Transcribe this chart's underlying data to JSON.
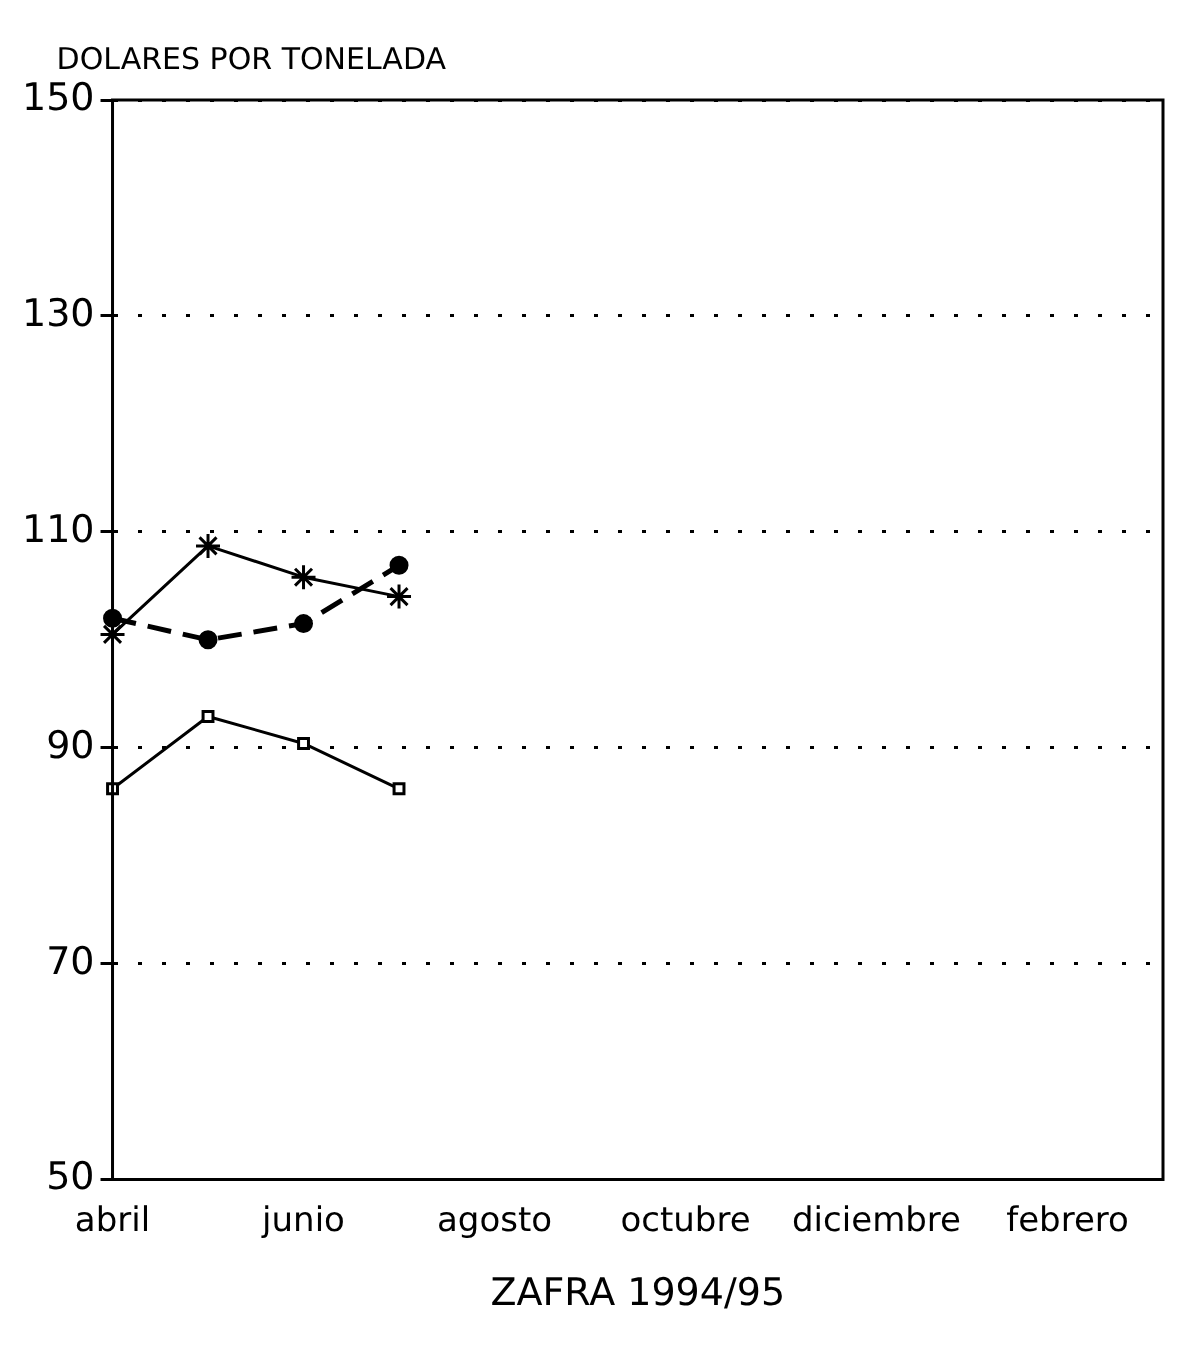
{
  "chart_data": {
    "type": "line",
    "ylabel": "DOLARES POR TONELADA",
    "xlabel": "ZAFRA 1994/95",
    "categories": [
      "abril",
      null,
      "junio",
      null,
      "agosto",
      null,
      "octubre",
      null,
      "diciembre",
      null,
      "febrero",
      null
    ],
    "ylim": [
      50,
      150
    ],
    "yticks": [
      50,
      70,
      90,
      110,
      130,
      150
    ],
    "grid": "y",
    "legend": false,
    "series": [
      {
        "color": "#000000",
        "marker": "cross",
        "line_style": "solid",
        "values": [
          100.5,
          108.7,
          105.8,
          104,
          null,
          null,
          null,
          null,
          null,
          null,
          null,
          null
        ]
      },
      {
        "color": "#000000",
        "marker": "circle",
        "line_style": "dashed",
        "values": [
          102,
          100,
          101.5,
          106.9,
          null,
          null,
          null,
          null,
          null,
          null,
          null,
          null
        ]
      },
      {
        "color": "#000000",
        "marker": "square",
        "line_style": "solid",
        "values": [
          86.2,
          92.9,
          90.4,
          86.2,
          null,
          null,
          null,
          null,
          null,
          null,
          null,
          null
        ]
      }
    ]
  }
}
